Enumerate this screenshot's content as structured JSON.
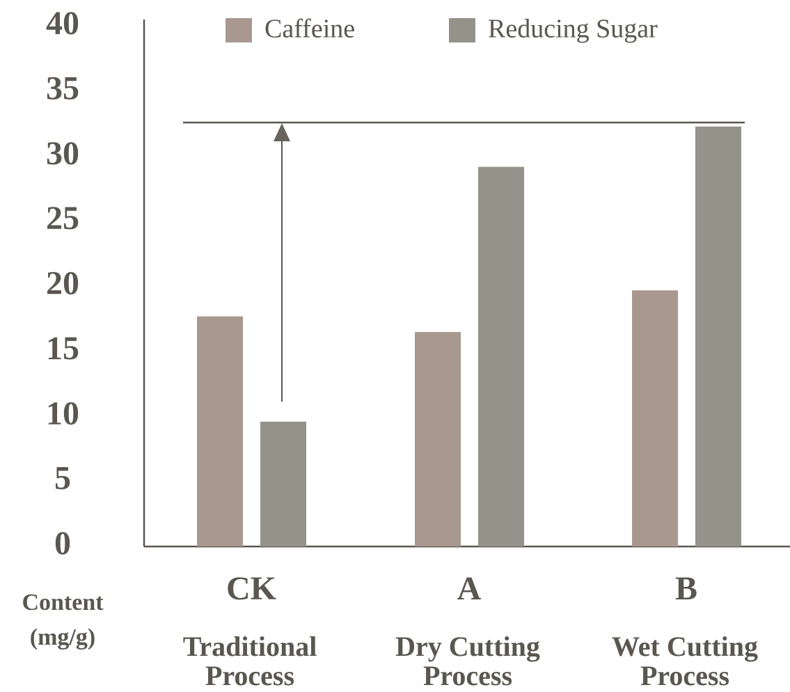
{
  "chart_data": {
    "type": "bar",
    "categories": [
      "CK",
      "A",
      "B"
    ],
    "subcategories": [
      [
        "Traditional",
        "Process"
      ],
      [
        "Dry Cutting",
        "Process"
      ],
      [
        "Wet Cutting",
        "Process"
      ]
    ],
    "ylabel": [
      "Content",
      "(mg/g)"
    ],
    "series": [
      {
        "name": "Caffeine",
        "color": "#a8988f",
        "values": [
          17.7,
          16.5,
          19.7
        ]
      },
      {
        "name": "Reducing Sugar",
        "color": "#93938a",
        "values": [
          9.6,
          29.2,
          32.3
        ]
      }
    ],
    "ylim": [
      0,
      40
    ],
    "yticks": [
      0,
      5,
      10,
      15,
      20,
      25,
      30,
      35,
      40
    ],
    "grid": false
  }
}
